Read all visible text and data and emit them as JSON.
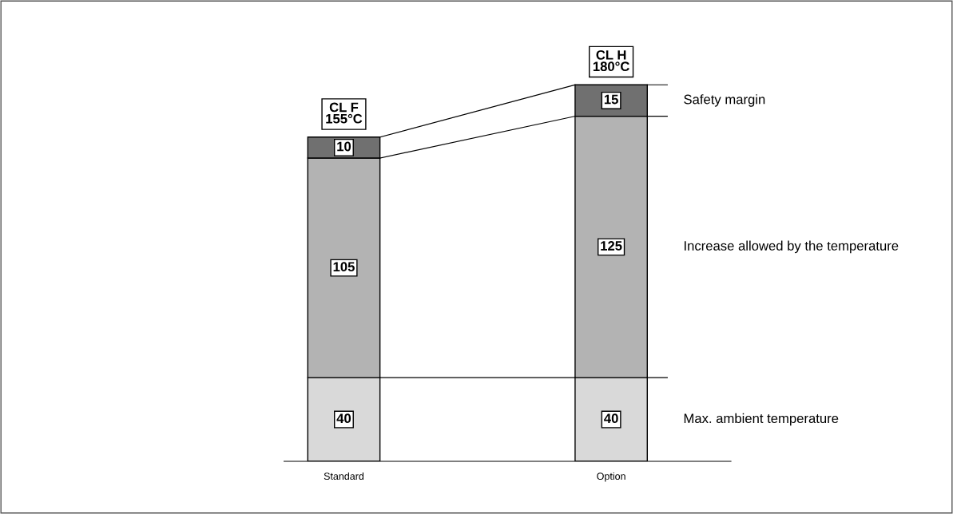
{
  "chart_data": {
    "type": "bar",
    "stacked": true,
    "data_labels": true,
    "categories": [
      "Standard",
      "Option"
    ],
    "series": [
      {
        "name": "Max. ambient temperature",
        "color": "#d9d9d9",
        "values": [
          40,
          40
        ]
      },
      {
        "name": "Increase allowed by the temperature",
        "color": "#b3b3b3",
        "values": [
          105,
          125
        ]
      },
      {
        "name": "Safety margin",
        "color": "#707070",
        "values": [
          10,
          15
        ]
      }
    ],
    "annotations": [
      {
        "text": "CL F\n155°C",
        "x": "Standard",
        "y": 155
      },
      {
        "text": "CL H\n180°C",
        "x": "Option",
        "y": 180
      }
    ]
  }
}
